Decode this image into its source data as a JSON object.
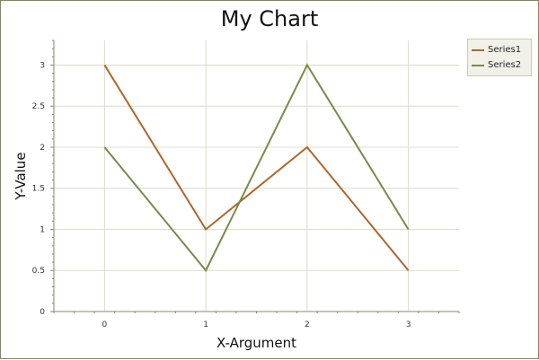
{
  "chart_data": {
    "type": "line",
    "title": "My Chart",
    "xlabel": "X-Argument",
    "ylabel": "Y-Value",
    "x": [
      0,
      1,
      2,
      3
    ],
    "xlim": [
      -0.5,
      3.5
    ],
    "ylim": [
      0,
      3.3
    ],
    "yticks": [
      0,
      0.5,
      1,
      1.5,
      2,
      2.5,
      3
    ],
    "ytick_labels": [
      "0",
      "0.5",
      "1",
      "1.5",
      "2",
      "2.5",
      "3"
    ],
    "xtick_labels": [
      "0",
      "1",
      "2",
      "3"
    ],
    "grid": true,
    "legend_position": "top-right outside",
    "series": [
      {
        "name": "Series1",
        "color": "#b0652a",
        "values": [
          3,
          1,
          2,
          0.5
        ]
      },
      {
        "name": "Series2",
        "color": "#7a8a4a",
        "values": [
          2,
          0.5,
          3,
          1
        ]
      }
    ]
  },
  "colors": {
    "grid": "#dedcc8",
    "axis": "#8a8a6a",
    "frame": "#7d8a5a"
  }
}
